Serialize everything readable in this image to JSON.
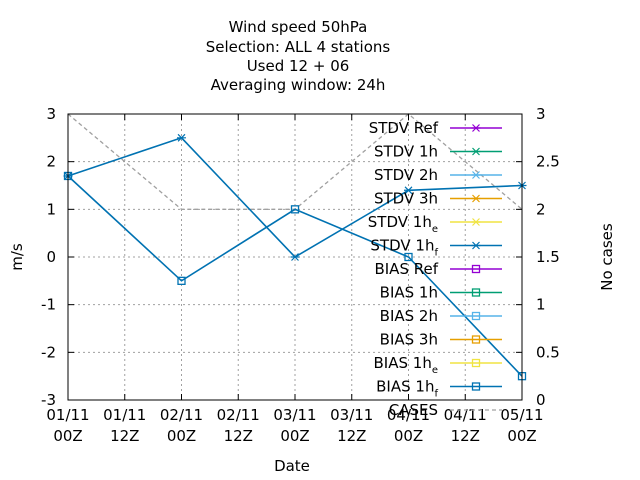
{
  "chart_data": {
    "type": "line",
    "title_lines": [
      "Wind speed 50hPa",
      "Selection: ALL      4 stations",
      "Used  12 + 06",
      "Averaging window: 24h"
    ],
    "xlabel": "Date",
    "ylabel": "m/s",
    "y2label": "No cases",
    "x_ticks": [
      {
        "line1": "01/11",
        "line2": "00Z",
        "hours": 0
      },
      {
        "line1": "01/11",
        "line2": "12Z",
        "hours": 12
      },
      {
        "line1": "02/11",
        "line2": "00Z",
        "hours": 24
      },
      {
        "line1": "02/11",
        "line2": "12Z",
        "hours": 36
      },
      {
        "line1": "03/11",
        "line2": "00Z",
        "hours": 48
      },
      {
        "line1": "03/11",
        "line2": "12Z",
        "hours": 60
      },
      {
        "line1": "04/11",
        "line2": "00Z",
        "hours": 72
      },
      {
        "line1": "04/11",
        "line2": "12Z",
        "hours": 84
      },
      {
        "line1": "05/11",
        "line2": "00Z",
        "hours": 96
      }
    ],
    "xlim": [
      0,
      96
    ],
    "ylim": [
      -3,
      3
    ],
    "y_ticks": [
      "3",
      "2",
      "1",
      "0",
      "-1",
      "-2",
      "-3"
    ],
    "y2lim": [
      0,
      3
    ],
    "y2_ticks": [
      "3",
      "2.5",
      "2",
      "1.5",
      "1",
      "0.5",
      "0"
    ],
    "grid": true,
    "legend_position": "top-right",
    "series": [
      {
        "name": "STDV Ref",
        "sub": "",
        "color": "#9400d3",
        "marker": "star",
        "dash": false,
        "axis": "y",
        "x": [],
        "y": []
      },
      {
        "name": "STDV 1h",
        "sub": "",
        "color": "#009e73",
        "marker": "star",
        "dash": false,
        "axis": "y",
        "x": [],
        "y": []
      },
      {
        "name": "STDV 2h",
        "sub": "",
        "color": "#56b4e9",
        "marker": "star",
        "dash": false,
        "axis": "y",
        "x": [],
        "y": []
      },
      {
        "name": "STDV 3h",
        "sub": "",
        "color": "#e69f00",
        "marker": "star",
        "dash": false,
        "axis": "y",
        "x": [],
        "y": []
      },
      {
        "name": "STDV 1h",
        "sub": "e",
        "color": "#f0e442",
        "marker": "star",
        "dash": false,
        "axis": "y",
        "x": [],
        "y": []
      },
      {
        "name": "STDV 1h",
        "sub": "f",
        "color": "#0072b2",
        "marker": "star",
        "dash": false,
        "axis": "y",
        "x": [
          0,
          24,
          48,
          72,
          96
        ],
        "y": [
          1.7,
          2.5,
          0.0,
          1.4,
          1.5
        ]
      },
      {
        "name": "BIAS Ref",
        "sub": "",
        "color": "#9400d3",
        "marker": "square",
        "dash": false,
        "axis": "y",
        "x": [],
        "y": []
      },
      {
        "name": "BIAS 1h",
        "sub": "",
        "color": "#009e73",
        "marker": "square",
        "dash": false,
        "axis": "y",
        "x": [],
        "y": []
      },
      {
        "name": "BIAS 2h",
        "sub": "",
        "color": "#56b4e9",
        "marker": "square",
        "dash": false,
        "axis": "y",
        "x": [],
        "y": []
      },
      {
        "name": "BIAS 3h",
        "sub": "",
        "color": "#e69f00",
        "marker": "square",
        "dash": false,
        "axis": "y",
        "x": [],
        "y": []
      },
      {
        "name": "BIAS 1h",
        "sub": "e",
        "color": "#f0e442",
        "marker": "square",
        "dash": false,
        "axis": "y",
        "x": [],
        "y": []
      },
      {
        "name": "BIAS 1h",
        "sub": "f",
        "color": "#0072b2",
        "marker": "square",
        "dash": false,
        "axis": "y",
        "x": [
          0,
          24,
          48,
          72,
          96
        ],
        "y": [
          1.7,
          -0.5,
          1.0,
          0.0,
          -2.5
        ]
      },
      {
        "name": "CASES",
        "sub": "",
        "color": "#a0a0a0",
        "marker": "none",
        "dash": true,
        "axis": "y2",
        "x": [
          0,
          24,
          48,
          72,
          96
        ],
        "y": [
          3,
          2,
          2,
          3,
          2
        ]
      }
    ]
  }
}
